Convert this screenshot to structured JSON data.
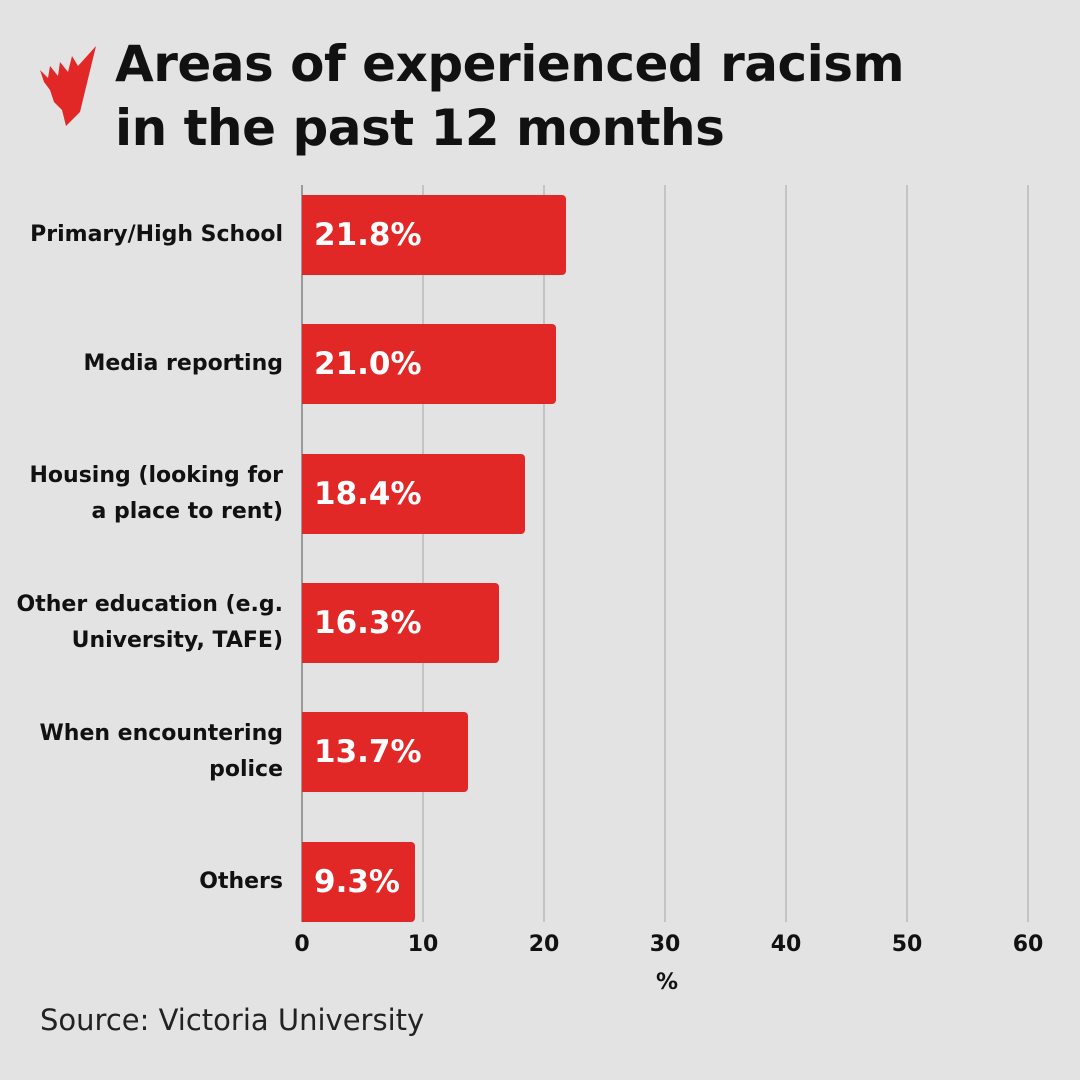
{
  "header": {
    "logo_icon": "sbs-logo-icon",
    "title_line1": "Areas of experienced racism",
    "title_line2": "in the past 12 months"
  },
  "colors": {
    "background": "#e3e3e3",
    "bar": "#e22727",
    "bar_text": "#ffffff",
    "gridline": "#c4c4c4"
  },
  "chart": {
    "bars": [
      {
        "label_lines": [
          "Primary/High School"
        ],
        "value": 21.8,
        "value_label": "21.8%"
      },
      {
        "label_lines": [
          "Media reporting"
        ],
        "value": 21.0,
        "value_label": "21.0%"
      },
      {
        "label_lines": [
          "Housing (looking for",
          "a place to rent)"
        ],
        "value": 18.4,
        "value_label": "18.4%"
      },
      {
        "label_lines": [
          "Other education (e.g.",
          "University, TAFE)"
        ],
        "value": 16.3,
        "value_label": "16.3%"
      },
      {
        "label_lines": [
          "When encountering",
          "police"
        ],
        "value": 13.7,
        "value_label": "13.7%"
      },
      {
        "label_lines": [
          "Others"
        ],
        "value": 9.3,
        "value_label": "9.3%"
      }
    ],
    "ticks": [
      "0",
      "10",
      "20",
      "30",
      "40",
      "50",
      "60"
    ],
    "xlabel": "%"
  },
  "footer": {
    "source": "Source: Victoria University"
  },
  "chart_data": {
    "type": "bar",
    "orientation": "horizontal",
    "title": "Areas of experienced racism in the past 12 months",
    "categories": [
      "Primary/High School",
      "Media reporting",
      "Housing (looking for a place to rent)",
      "Other education (e.g. University, TAFE)",
      "When encountering police",
      "Others"
    ],
    "values": [
      21.8,
      21.0,
      18.4,
      16.3,
      13.7,
      9.3
    ],
    "data_labels": [
      "21.8%",
      "21.0%",
      "18.4%",
      "16.3%",
      "13.7%",
      "9.3%"
    ],
    "xlabel": "%",
    "ylabel": "",
    "xlim": [
      0,
      60
    ],
    "xticks": [
      0,
      10,
      20,
      30,
      40,
      50,
      60
    ],
    "grid": "vertical",
    "legend": "none",
    "source": "Source: Victoria University"
  }
}
